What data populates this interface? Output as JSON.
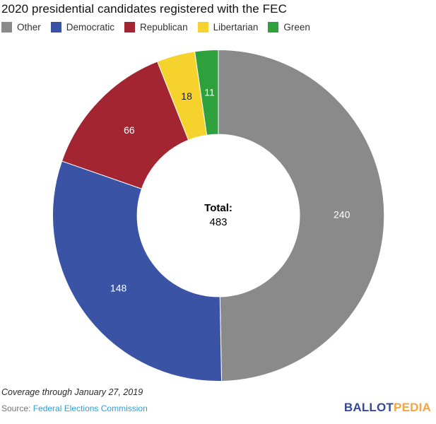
{
  "chart_data": {
    "type": "pie",
    "subtype": "donut",
    "title": "2020 presidential candidates registered with the FEC",
    "slices": [
      {
        "label": "Other",
        "value": 240,
        "color": "#8a8a8a",
        "label_color": "#ffffff"
      },
      {
        "label": "Democratic",
        "value": 148,
        "color": "#3a53a5",
        "label_color": "#ffffff"
      },
      {
        "label": "Republican",
        "value": 66,
        "color": "#a32531",
        "label_color": "#ffffff"
      },
      {
        "label": "Libertarian",
        "value": 18,
        "color": "#f5d22c",
        "label_color": "#1a1a1a"
      },
      {
        "label": "Green",
        "value": 11,
        "color": "#2ea13c",
        "label_color": "#ffffff"
      }
    ],
    "total_label": "Total:",
    "total_value": "483",
    "start_angle_deg": 0,
    "direction": "clockwise",
    "inner_radius_ratio": 0.49,
    "legend_position": "top-left",
    "slice_border_color": "#ffffff"
  },
  "footer": {
    "coverage_note": "Coverage through January 27, 2019",
    "source_label": "Source:",
    "source_link": "Federal Elections Commission"
  },
  "logo": {
    "part1": "BALLOT",
    "part2": "PEDIA"
  }
}
